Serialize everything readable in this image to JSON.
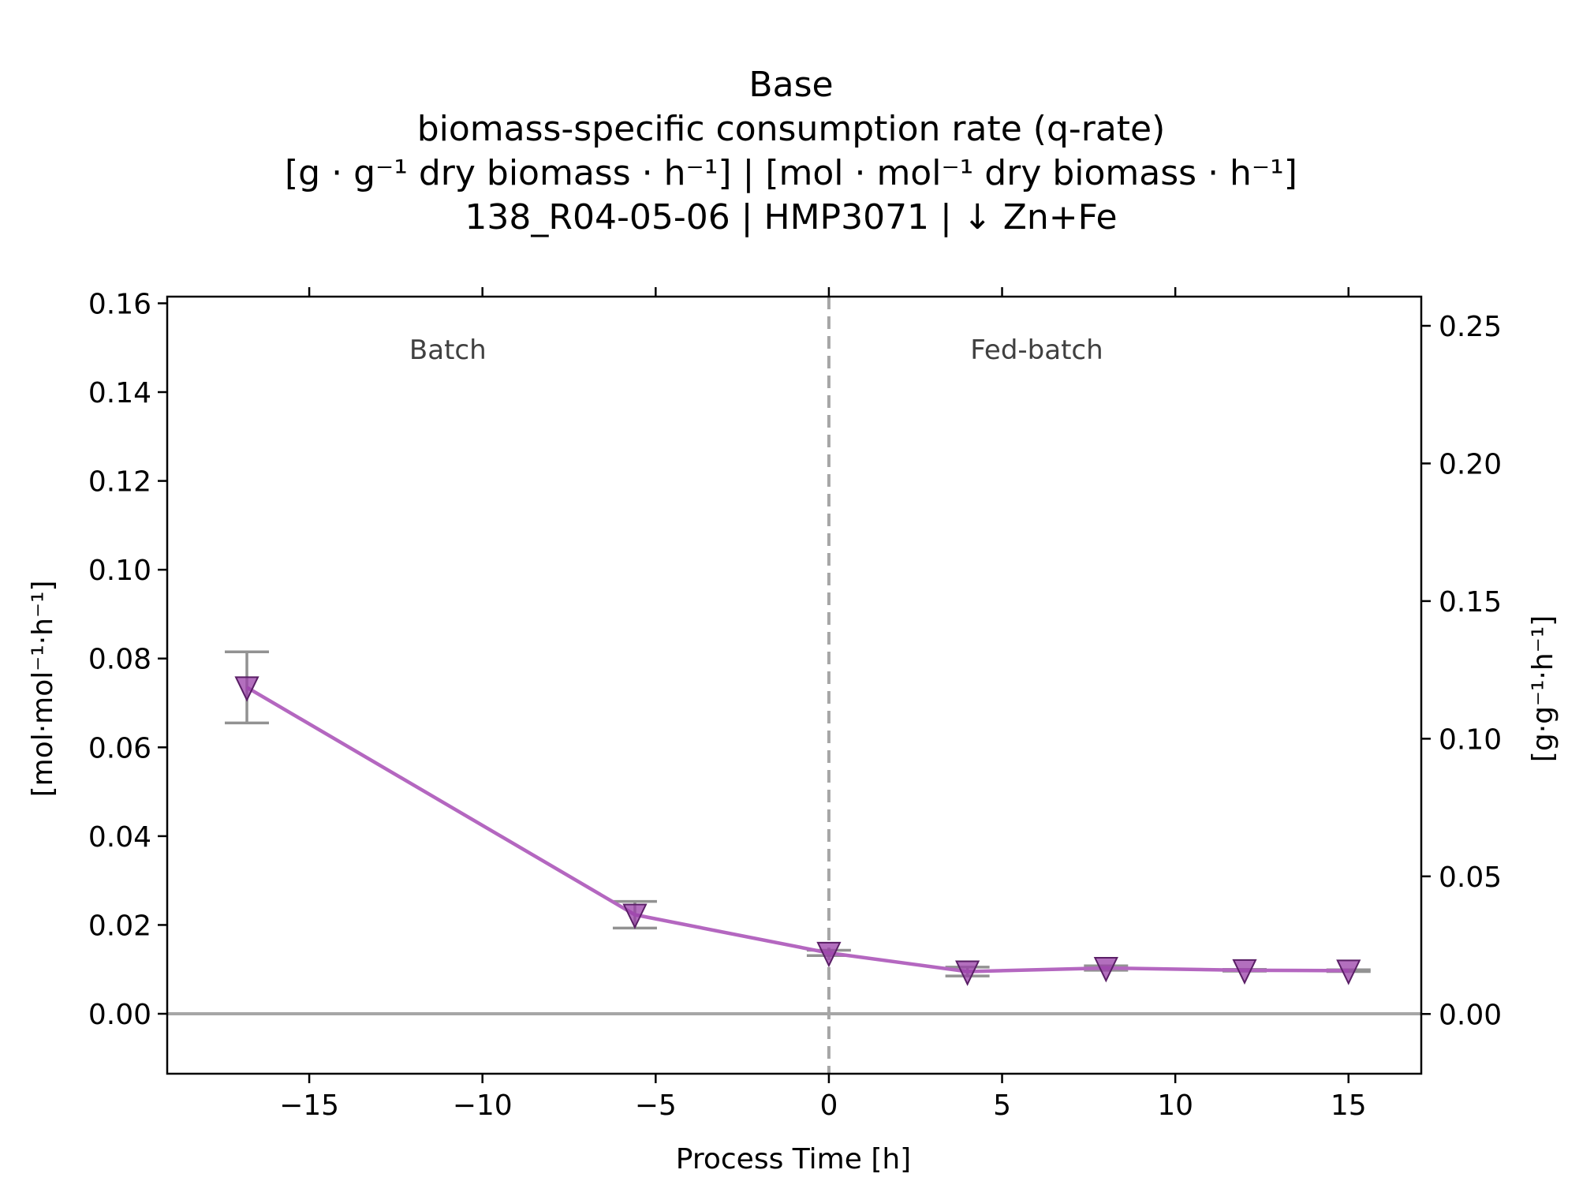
{
  "chart_data": {
    "type": "line",
    "title_lines": [
      "Base",
      "biomass-specific consumption rate (q-rate)",
      "[g · g⁻¹ dry biomass · h⁻¹]    |    [mol · mol⁻¹ dry biomass · h⁻¹]",
      "138_R04-05-06  |  HMP3071  |  ↓ Zn+Fe"
    ],
    "xlabel": "Process Time [h]",
    "ylabel_left": "[mol·mol⁻¹·h⁻¹]",
    "ylabel_right": "[g·g⁻¹·h⁻¹]",
    "xlim": [
      -19.1,
      17.1
    ],
    "ylim_left": [
      -0.0135,
      0.1615
    ],
    "ylim_right": [
      -0.0217,
      0.2606
    ],
    "x_ticks": [
      -15,
      -10,
      -5,
      0,
      5,
      10,
      15
    ],
    "x_tick_labels": [
      "−15",
      "−10",
      "−5",
      "0",
      "5",
      "10",
      "15"
    ],
    "y_left_ticks": [
      0.0,
      0.02,
      0.04,
      0.06,
      0.08,
      0.1,
      0.12,
      0.14,
      0.16
    ],
    "y_left_tick_labels": [
      "0.00",
      "0.02",
      "0.04",
      "0.06",
      "0.08",
      "0.10",
      "0.12",
      "0.14",
      "0.16"
    ],
    "y_right_ticks": [
      0.0,
      0.05,
      0.1,
      0.15,
      0.2,
      0.25
    ],
    "y_right_tick_labels": [
      "0.00",
      "0.05",
      "0.10",
      "0.15",
      "0.20",
      "0.25"
    ],
    "phase_boundary_x": 0,
    "phases": [
      {
        "label": "Batch",
        "x": -11
      },
      {
        "label": "Fed-batch",
        "x": 6
      }
    ],
    "grid": false,
    "series": [
      {
        "marker": "triangle-down",
        "color": "#b467c0",
        "x": [
          -16.8,
          -5.6,
          0,
          4,
          8,
          12,
          15
        ],
        "y": [
          0.0735,
          0.0223,
          0.0137,
          0.0095,
          0.0103,
          0.0098,
          0.0097
        ],
        "err": [
          0.008,
          0.003,
          0.0006,
          0.001,
          0.0005,
          0.0002,
          0.0002
        ]
      }
    ],
    "colors": {
      "line": "#b467c0",
      "marker_fill": "#9a3fa8",
      "errorbar": "#808080",
      "zero_line": "#a6a6a6",
      "divider": "#a6a6a6"
    }
  }
}
